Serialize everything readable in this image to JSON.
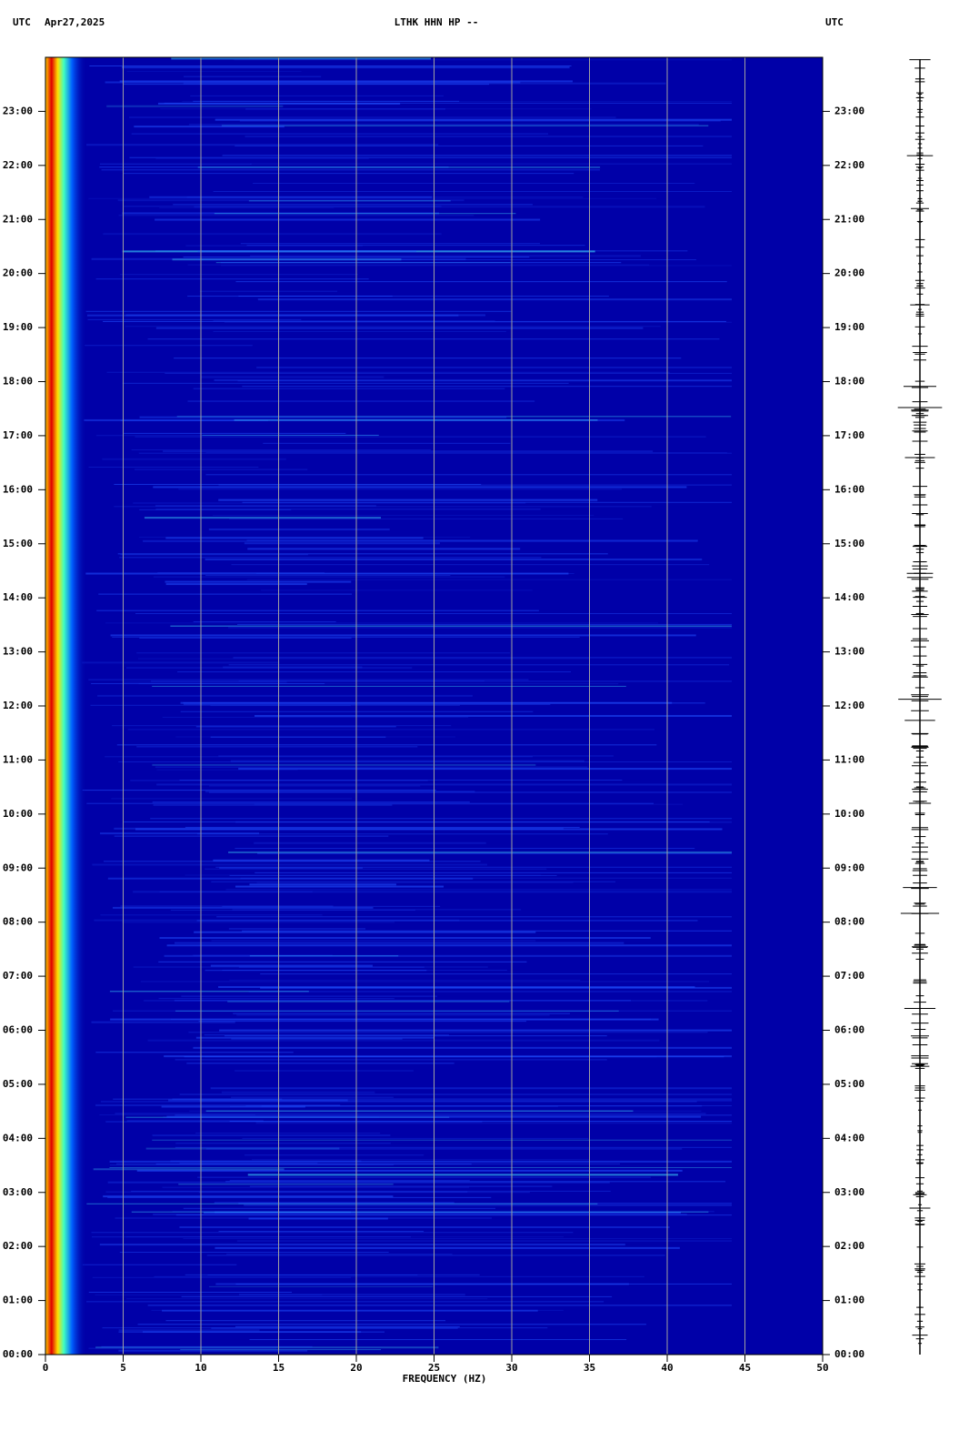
{
  "chart_data": {
    "type": "spectrogram",
    "header_left": "UTC",
    "date": "Apr27,2025",
    "title": "LTHK HHN HP --",
    "header_right": "UTC",
    "x_label": "FREQUENCY (HZ)",
    "xlim": [
      0,
      50
    ],
    "xticks": [
      0,
      5,
      10,
      15,
      20,
      25,
      30,
      35,
      40,
      45,
      50
    ],
    "ylim": [
      0,
      24
    ],
    "yticks": [
      {
        "value": 0,
        "label": "00:00"
      },
      {
        "value": 1,
        "label": "01:00"
      },
      {
        "value": 2,
        "label": "02:00"
      },
      {
        "value": 3,
        "label": "03:00"
      },
      {
        "value": 4,
        "label": "04:00"
      },
      {
        "value": 5,
        "label": "05:00"
      },
      {
        "value": 6,
        "label": "06:00"
      },
      {
        "value": 7,
        "label": "07:00"
      },
      {
        "value": 8,
        "label": "08:00"
      },
      {
        "value": 9,
        "label": "09:00"
      },
      {
        "value": 10,
        "label": "10:00"
      },
      {
        "value": 11,
        "label": "11:00"
      },
      {
        "value": 12,
        "label": "12:00"
      },
      {
        "value": 13,
        "label": "13:00"
      },
      {
        "value": 14,
        "label": "14:00"
      },
      {
        "value": 15,
        "label": "15:00"
      },
      {
        "value": 16,
        "label": "16:00"
      },
      {
        "value": 17,
        "label": "17:00"
      },
      {
        "value": 18,
        "label": "18:00"
      },
      {
        "value": 19,
        "label": "19:00"
      },
      {
        "value": 20,
        "label": "20:00"
      },
      {
        "value": 21,
        "label": "21:00"
      },
      {
        "value": 22,
        "label": "22:00"
      },
      {
        "value": 23,
        "label": "23:00"
      }
    ],
    "grid": true,
    "background_color": "#0000a8",
    "grid_color": "#a0a0a0"
  }
}
